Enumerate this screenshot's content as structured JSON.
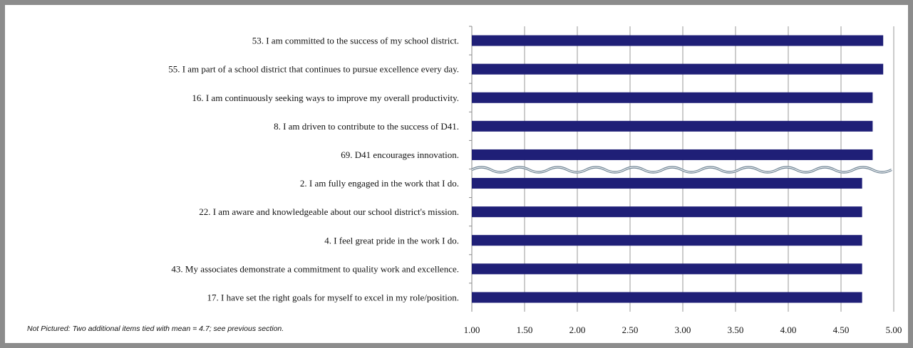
{
  "chart_data": {
    "type": "bar",
    "orientation": "horizontal",
    "categories": [
      "53. I am committed to the success of my school district.",
      "55. I am part of a school district that continues to pursue excellence every day.",
      "16. I am continuously seeking ways to improve my overall productivity.",
      "8. I am driven to contribute to the success of  D41.",
      "69. D41 encourages innovation.",
      "2. I am fully engaged in the work that I do.",
      "22. I am aware and knowledgeable about our school district's mission.",
      "4. I feel great pride in the work I do.",
      "43. My associates demonstrate a commitment to quality work and excellence.",
      "17. I have set the right goals for myself to excel in my role/position."
    ],
    "values": [
      4.9,
      4.9,
      4.8,
      4.8,
      4.8,
      4.7,
      4.7,
      4.7,
      4.7,
      4.7
    ],
    "xlim": [
      1.0,
      5.0
    ],
    "x_ticks": [
      "1.00",
      "1.50",
      "2.00",
      "2.50",
      "3.00",
      "3.50",
      "4.00",
      "4.50",
      "5.00"
    ],
    "grid": true,
    "bar_color": "#1f1f77",
    "break_marker": {
      "after_index": 4,
      "color": "#6f8494"
    },
    "title": "",
    "xlabel": "",
    "ylabel": ""
  },
  "footnote": "Not Pictured: Two additional items tied with mean = 4.7; see previous section."
}
